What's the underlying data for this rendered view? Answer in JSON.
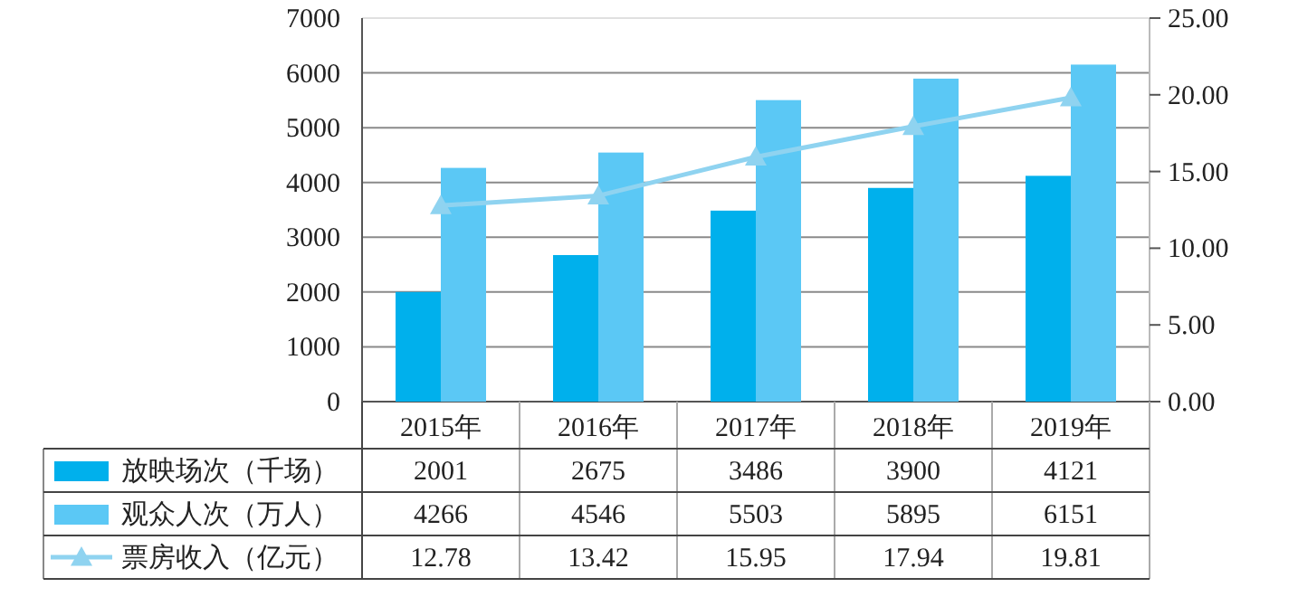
{
  "chart_data": {
    "type": "bar",
    "categories": [
      "2015年",
      "2016年",
      "2017年",
      "2018年",
      "2019年"
    ],
    "series": [
      {
        "name": "放映场次（千场）",
        "color": "#00b0ec",
        "values": [
          2001,
          2675,
          3486,
          3900,
          4121
        ]
      },
      {
        "name": "观众人次（万人）",
        "color": "#5bc8f5",
        "values": [
          4266,
          4546,
          5503,
          5895,
          6151
        ]
      },
      {
        "name": "票房收入（亿元）",
        "type": "line",
        "axis": "y2",
        "marker": "triangle",
        "color": "#8fd3f0",
        "values": [
          12.78,
          13.42,
          15.95,
          17.94,
          19.81
        ]
      }
    ],
    "ylim": [
      0,
      7000
    ],
    "yticks": [
      0,
      1000,
      2000,
      3000,
      4000,
      5000,
      6000,
      7000
    ],
    "y2lim": [
      0,
      25
    ],
    "y2ticks": [
      {
        "value": 0,
        "label": "0.00"
      },
      {
        "value": 5,
        "label": "5.00"
      },
      {
        "value": 10,
        "label": "10.00"
      },
      {
        "value": 15,
        "label": "15.00"
      },
      {
        "value": 20,
        "label": "20.00"
      },
      {
        "value": 25,
        "label": "25.00"
      }
    ],
    "grid": "y",
    "data_labels": true,
    "legend": "bottom left"
  }
}
